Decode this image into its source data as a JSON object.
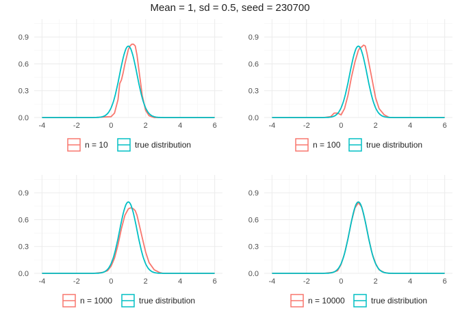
{
  "title": "Mean = 1, sd = 0.5, seed = 230700",
  "colors": {
    "sample": "#F8766D",
    "true": "#00BFC4",
    "grid": "#ebebeb"
  },
  "chart_data": [
    {
      "type": "line",
      "title": "",
      "xlabel": "",
      "ylabel": "",
      "xlim": [
        -4,
        6
      ],
      "ylim": [
        0,
        1.1
      ],
      "x_ticks": [
        -4,
        -2,
        0,
        2,
        4,
        6
      ],
      "y_ticks": [
        0.0,
        0.3,
        0.6,
        0.9
      ],
      "x_tick_labels": [
        "-4",
        "-2",
        "0",
        "2",
        "4",
        "6"
      ],
      "y_tick_labels": [
        "0.0",
        "0.3",
        "0.6",
        "0.9"
      ],
      "grid": true,
      "legend_position": "bottom",
      "series": [
        {
          "name": "n = 10",
          "x": [
            -4,
            -1,
            0,
            0.2,
            0.4,
            0.5,
            0.6,
            0.7,
            0.8,
            0.9,
            1.0,
            1.1,
            1.2,
            1.3,
            1.4,
            1.5,
            1.6,
            1.7,
            1.8,
            2.0,
            2.2,
            2.5,
            6
          ],
          "y": [
            0,
            0,
            0.01,
            0.05,
            0.2,
            0.38,
            0.42,
            0.5,
            0.6,
            0.68,
            0.76,
            0.8,
            0.82,
            0.82,
            0.8,
            0.7,
            0.55,
            0.4,
            0.25,
            0.08,
            0.02,
            0,
            0
          ]
        },
        {
          "name": "true distribution",
          "distribution": {
            "mean": 1,
            "sd": 0.5
          }
        }
      ]
    },
    {
      "type": "line",
      "title": "",
      "xlabel": "",
      "ylabel": "",
      "xlim": [
        -4,
        6
      ],
      "ylim": [
        0,
        1.1
      ],
      "x_ticks": [
        -4,
        -2,
        0,
        2,
        4,
        6
      ],
      "y_ticks": [
        0.0,
        0.3,
        0.6,
        0.9
      ],
      "x_tick_labels": [
        "-4",
        "-2",
        "0",
        "2",
        "4",
        "6"
      ],
      "y_tick_labels": [
        "0.0",
        "0.3",
        "0.6",
        "0.9"
      ],
      "grid": true,
      "legend_position": "bottom",
      "series": [
        {
          "name": "n = 100",
          "x": [
            -4,
            -1,
            -0.6,
            -0.4,
            -0.2,
            0,
            0.2,
            0.4,
            0.6,
            0.8,
            1.0,
            1.1,
            1.2,
            1.3,
            1.4,
            1.5,
            1.6,
            1.8,
            2.0,
            2.2,
            2.5,
            2.8,
            6
          ],
          "y": [
            0,
            0,
            0.01,
            0.05,
            0.05,
            0.03,
            0.1,
            0.25,
            0.45,
            0.62,
            0.75,
            0.78,
            0.79,
            0.81,
            0.8,
            0.72,
            0.62,
            0.42,
            0.22,
            0.1,
            0.03,
            0,
            0
          ]
        },
        {
          "name": "true distribution",
          "distribution": {
            "mean": 1,
            "sd": 0.5
          }
        }
      ]
    },
    {
      "type": "line",
      "title": "",
      "xlabel": "",
      "ylabel": "",
      "xlim": [
        -4,
        6
      ],
      "ylim": [
        0,
        1.1
      ],
      "x_ticks": [
        -4,
        -2,
        0,
        2,
        4,
        6
      ],
      "y_ticks": [
        0.0,
        0.3,
        0.6,
        0.9
      ],
      "x_tick_labels": [
        "-4",
        "-2",
        "0",
        "2",
        "4",
        "6"
      ],
      "y_tick_labels": [
        "0.0",
        "0.3",
        "0.6",
        "0.9"
      ],
      "grid": true,
      "legend_position": "bottom",
      "series": [
        {
          "name": "n = 1000",
          "x": [
            -4,
            -1,
            -0.5,
            -0.2,
            0,
            0.2,
            0.4,
            0.6,
            0.8,
            1.0,
            1.1,
            1.2,
            1.3,
            1.4,
            1.5,
            1.6,
            1.8,
            2.0,
            2.2,
            2.5,
            2.8,
            3.0,
            6
          ],
          "y": [
            0,
            0,
            0.01,
            0.03,
            0.08,
            0.17,
            0.32,
            0.5,
            0.65,
            0.72,
            0.73,
            0.73,
            0.72,
            0.7,
            0.65,
            0.57,
            0.4,
            0.24,
            0.12,
            0.04,
            0.01,
            0,
            0
          ]
        },
        {
          "name": "true distribution",
          "distribution": {
            "mean": 1,
            "sd": 0.5
          }
        }
      ]
    },
    {
      "type": "line",
      "title": "",
      "xlabel": "",
      "ylabel": "",
      "xlim": [
        -4,
        6
      ],
      "ylim": [
        0,
        1.1
      ],
      "x_ticks": [
        -4,
        -2,
        0,
        2,
        4,
        6
      ],
      "y_ticks": [
        0.0,
        0.3,
        0.6,
        0.9
      ],
      "x_tick_labels": [
        "-4",
        "-2",
        "0",
        "2",
        "4",
        "6"
      ],
      "y_tick_labels": [
        "0.0",
        "0.3",
        "0.6",
        "0.9"
      ],
      "grid": true,
      "legend_position": "bottom",
      "series": [
        {
          "name": "n = 10000",
          "x": [
            -4,
            -1,
            -0.5,
            -0.2,
            0,
            0.2,
            0.4,
            0.6,
            0.8,
            1.0,
            1.2,
            1.4,
            1.6,
            1.8,
            2.0,
            2.2,
            2.5,
            2.8,
            3.0,
            6
          ],
          "y": [
            0,
            0,
            0.01,
            0.03,
            0.1,
            0.22,
            0.39,
            0.58,
            0.73,
            0.79,
            0.74,
            0.58,
            0.39,
            0.22,
            0.11,
            0.04,
            0.01,
            0,
            0,
            0
          ]
        },
        {
          "name": "true distribution",
          "distribution": {
            "mean": 1,
            "sd": 0.5
          }
        }
      ]
    }
  ]
}
